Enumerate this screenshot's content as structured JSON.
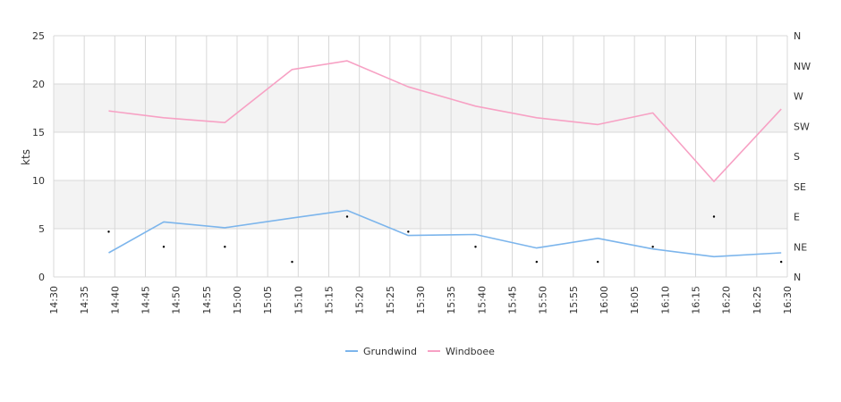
{
  "chart_data": {
    "type": "line",
    "title": "",
    "xlabel": "",
    "ylabel": "kts",
    "ylim": [
      0,
      25
    ],
    "y_ticks": [
      "0",
      "5",
      "10",
      "15",
      "20",
      "25"
    ],
    "x_ticks": [
      "14:30",
      "14:35",
      "14:40",
      "14:45",
      "14:50",
      "14:55",
      "15:00",
      "15:05",
      "15:10",
      "15:15",
      "15:20",
      "15:25",
      "15:30",
      "15:35",
      "15:40",
      "15:45",
      "15:50",
      "15:55",
      "16:00",
      "16:05",
      "16:10",
      "16:15",
      "16:20",
      "16:25",
      "16:30"
    ],
    "xlim": [
      "14:30",
      "16:30"
    ],
    "right_axis": {
      "label": "",
      "ticks": [
        "N",
        "NE",
        "E",
        "SE",
        "S",
        "SW",
        "W",
        "NW",
        "N"
      ]
    },
    "grid": true,
    "banded_background": true,
    "legend_position": "bottom",
    "series": [
      {
        "name": "Grundwind",
        "color": "#7cb5ec",
        "x": [
          "14:39",
          "14:48",
          "14:58",
          "15:09",
          "15:18",
          "15:28",
          "15:39",
          "15:49",
          "15:59",
          "16:08",
          "16:18",
          "16:29"
        ],
        "values": [
          2.5,
          5.7,
          5.1,
          6.1,
          6.9,
          4.3,
          4.4,
          3.0,
          4.0,
          2.9,
          2.1,
          2.5
        ]
      },
      {
        "name": "Windboee",
        "color": "#f7a1c4",
        "x": [
          "14:39",
          "14:48",
          "14:58",
          "15:09",
          "15:18",
          "15:28",
          "15:39",
          "15:49",
          "15:59",
          "16:08",
          "16:18",
          "16:29"
        ],
        "values": [
          17.2,
          16.5,
          16.0,
          21.5,
          22.4,
          19.7,
          17.7,
          16.5,
          15.8,
          17.0,
          9.9,
          17.4
        ]
      }
    ],
    "direction_markers": {
      "color": "#000000",
      "x": [
        "14:39",
        "14:48",
        "14:58",
        "15:09",
        "15:18",
        "15:28",
        "15:39",
        "15:49",
        "15:59",
        "16:08",
        "16:18",
        "16:29"
      ],
      "direction_index": [
        1.5,
        1.0,
        1.0,
        0.5,
        2.0,
        1.5,
        1.0,
        0.5,
        0.5,
        1.0,
        2.0,
        0.5
      ]
    }
  }
}
